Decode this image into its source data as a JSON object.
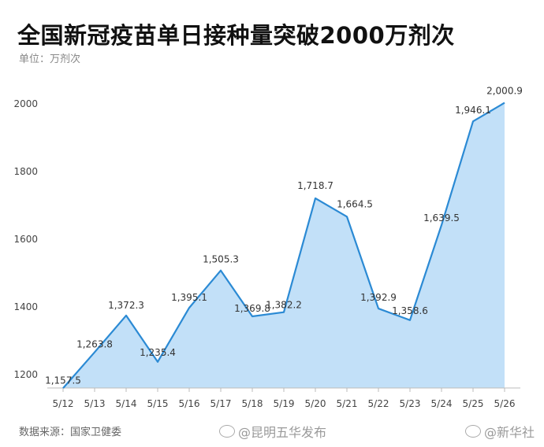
{
  "header": {
    "title": "全国新冠疫苗单日接种量突破2000万剂次",
    "unit": "单位：万剂次"
  },
  "footer": {
    "source": "数据来源：国家卫健委",
    "watermark_left": "@昆明五华发布",
    "watermark_right": "@新华社"
  },
  "colors": {
    "line": "#2b8ad4",
    "area": "#c2e0f8",
    "axis": "#bbbbbb"
  },
  "chart_data": {
    "type": "area",
    "title": "全国新冠疫苗单日接种量突破2000万剂次",
    "ylabel": "单位：万剂次",
    "xlabel": "",
    "categories": [
      "5/12",
      "5/13",
      "5/14",
      "5/15",
      "5/16",
      "5/17",
      "5/18",
      "5/19",
      "5/20",
      "5/21",
      "5/22",
      "5/23",
      "5/24",
      "5/25",
      "5/26"
    ],
    "values": [
      1157.5,
      1263.8,
      1372.3,
      1235.4,
      1395.1,
      1505.3,
      1369.8,
      1382.2,
      1718.7,
      1664.5,
      1392.9,
      1358.6,
      1639.5,
      1946.1,
      2000.9
    ],
    "labels": [
      "1,157.5",
      "1,263.8",
      "1,372.3",
      "1,235.4",
      "1,395.1",
      "1,505.3",
      "1,369.8",
      "1,382.2",
      "1,718.7",
      "1,664.5",
      "1,392.9",
      "1,358.6",
      "1,639.5",
      "1,946.1",
      "2,000.9"
    ],
    "yticks": [
      "1200",
      "1400",
      "1600",
      "1800",
      "2000"
    ],
    "ylim": [
      1155,
      2010
    ],
    "grid": false,
    "legend": "none"
  }
}
